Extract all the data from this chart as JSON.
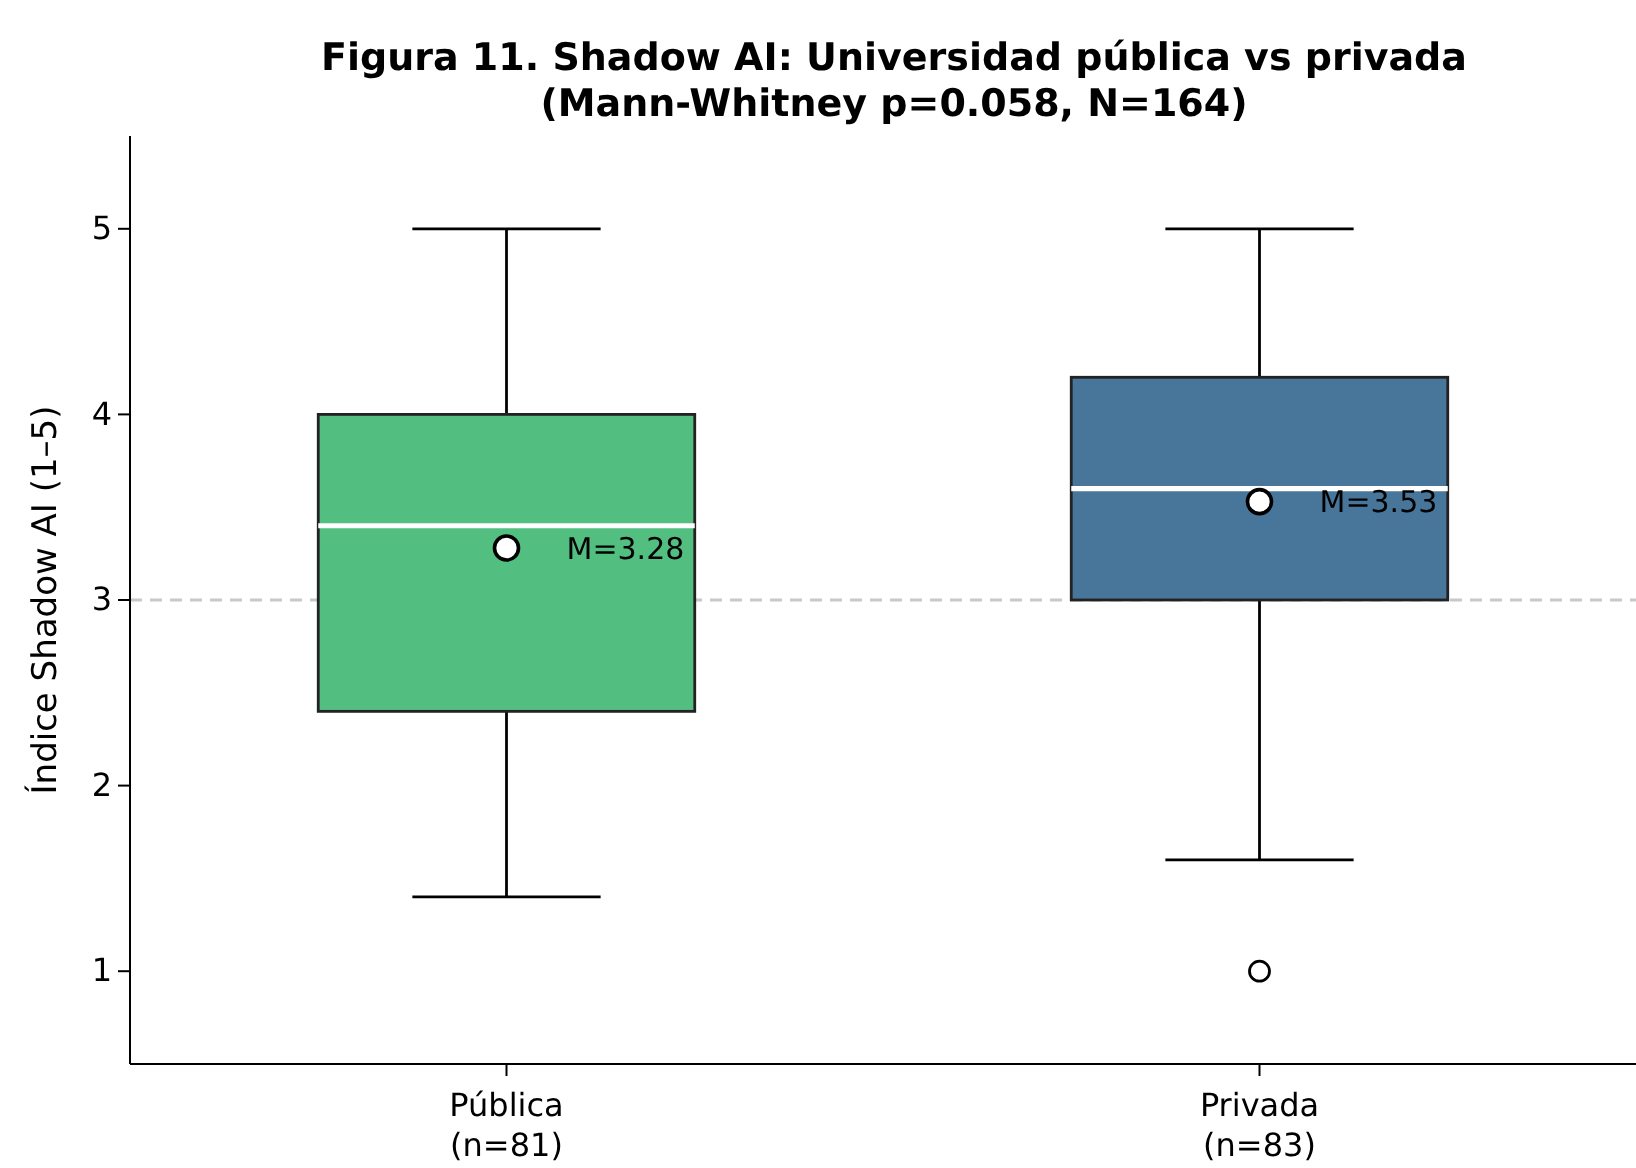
{
  "chart_data": {
    "type": "box",
    "title": "Figura 11. Shadow AI: Universidad pública vs privada\n(Mann-Whitney p=0.058, N=164)",
    "ylabel": "Índice Shadow AI (1–5)",
    "categories": [
      "Pública\n(n=81)",
      "Privada\n(n=83)"
    ],
    "colors": [
      "#52be80",
      "#48769a"
    ],
    "boxes": [
      {
        "low": 1.4,
        "q1": 2.4,
        "median": 3.4,
        "q3": 4.0,
        "high": 5,
        "mean": 3.28
      },
      {
        "low": 1.6,
        "q1": 3.0,
        "median": 3.6,
        "q3": 4.2,
        "high": 5,
        "mean": 3.53,
        "outliers": [
          1
        ]
      }
    ],
    "ylim": [
      0.5,
      5.5
    ],
    "yticks": [
      1,
      2,
      3,
      4,
      5
    ],
    "ref_lines": [
      {
        "axis": "y",
        "value": 3,
        "label": null,
        "color": "#c8c8c8",
        "line_style": "dashed"
      }
    ],
    "annotations": [
      "M=3.28",
      "M=3.53"
    ],
    "grid": false
  }
}
